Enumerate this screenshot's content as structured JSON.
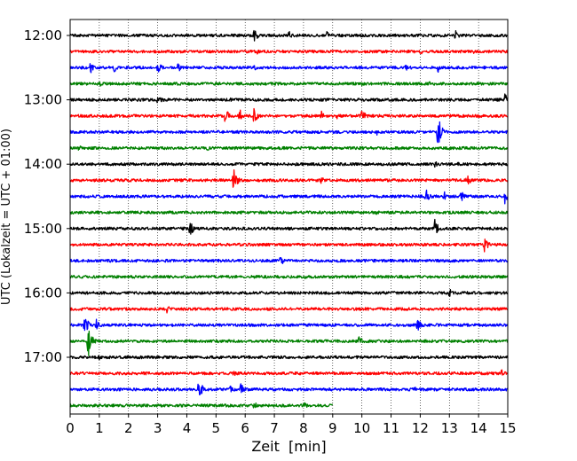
{
  "chart_data": {
    "type": "line",
    "subtype": "helicorder",
    "title": "",
    "xlabel": "Zeit  [min]",
    "ylabel": "UTC (Lokalzeit = UTC + 01:00)",
    "xlim": [
      0,
      15
    ],
    "x_ticks": [
      0,
      1,
      2,
      3,
      4,
      5,
      6,
      7,
      8,
      9,
      10,
      11,
      12,
      13,
      14,
      15
    ],
    "x_tick_labels": [
      "0",
      "1",
      "2",
      "3",
      "4",
      "5",
      "6",
      "7",
      "8",
      "9",
      "10",
      "11",
      "12",
      "13",
      "14",
      "15"
    ],
    "y_tick_labels": [
      "12:00",
      "13:00",
      "14:00",
      "15:00",
      "16:00",
      "17:00"
    ],
    "y_tick_rows": [
      0,
      4,
      8,
      12,
      16,
      20
    ],
    "grid": "vertical dotted",
    "legend": "none",
    "colors": [
      "#000000",
      "#ff0000",
      "#0000ff",
      "#008000"
    ],
    "line_minutes": 15,
    "rows": [
      {
        "start": "12:00",
        "color": "#000000",
        "end_min": 15,
        "events": [
          [
            6.3,
            9
          ],
          [
            7.5,
            5
          ],
          [
            8.8,
            5
          ],
          [
            13.2,
            7
          ]
        ]
      },
      {
        "start": "12:15",
        "color": "#ff0000",
        "end_min": 15,
        "events": [
          [
            6.4,
            4
          ],
          [
            12.0,
            4
          ],
          [
            13.8,
            3
          ]
        ]
      },
      {
        "start": "12:30",
        "color": "#0000ff",
        "end_min": 15,
        "events": [
          [
            0.7,
            7
          ],
          [
            1.5,
            6
          ],
          [
            3.0,
            8
          ],
          [
            3.7,
            6
          ],
          [
            5.0,
            4
          ],
          [
            6.3,
            4
          ],
          [
            11.5,
            5
          ],
          [
            12.6,
            6
          ]
        ]
      },
      {
        "start": "12:45",
        "color": "#008000",
        "end_min": 15,
        "events": [
          [
            1.0,
            4
          ],
          [
            10.0,
            3
          ],
          [
            12.3,
            3
          ]
        ]
      },
      {
        "start": "13:00",
        "color": "#000000",
        "end_min": 15,
        "events": [
          [
            3.0,
            8
          ],
          [
            5.5,
            3
          ],
          [
            14.9,
            8
          ]
        ]
      },
      {
        "start": "13:15",
        "color": "#ff0000",
        "end_min": 15,
        "events": [
          [
            5.3,
            12
          ],
          [
            5.8,
            9
          ],
          [
            6.3,
            11
          ],
          [
            8.6,
            7
          ],
          [
            9.1,
            6
          ],
          [
            10.0,
            10
          ]
        ]
      },
      {
        "start": "13:30",
        "color": "#0000ff",
        "end_min": 15,
        "events": [
          [
            12.6,
            20
          ],
          [
            10.5,
            4
          ]
        ]
      },
      {
        "start": "13:45",
        "color": "#008000",
        "end_min": 15,
        "events": [
          [
            0.3,
            4
          ],
          [
            4.7,
            3
          ]
        ]
      },
      {
        "start": "14:00",
        "color": "#000000",
        "end_min": 15,
        "events": [
          [
            12.5,
            4
          ],
          [
            13.3,
            4
          ]
        ]
      },
      {
        "start": "14:15",
        "color": "#ff0000",
        "end_min": 15,
        "events": [
          [
            5.6,
            14
          ],
          [
            8.6,
            6
          ],
          [
            13.6,
            8
          ]
        ]
      },
      {
        "start": "14:30",
        "color": "#0000ff",
        "end_min": 15,
        "events": [
          [
            12.2,
            10
          ],
          [
            12.8,
            7
          ],
          [
            13.4,
            7
          ],
          [
            14.9,
            10
          ]
        ]
      },
      {
        "start": "14:45",
        "color": "#008000",
        "end_min": 15,
        "events": [
          [
            1.0,
            3
          ],
          [
            10.5,
            4
          ]
        ]
      },
      {
        "start": "15:00",
        "color": "#000000",
        "end_min": 15,
        "events": [
          [
            4.1,
            11
          ],
          [
            12.5,
            11
          ]
        ]
      },
      {
        "start": "15:15",
        "color": "#ff0000",
        "end_min": 15,
        "events": [
          [
            14.2,
            10
          ]
        ]
      },
      {
        "start": "15:30",
        "color": "#0000ff",
        "end_min": 15,
        "events": [
          [
            7.2,
            7
          ],
          [
            4.7,
            3
          ]
        ]
      },
      {
        "start": "15:45",
        "color": "#008000",
        "end_min": 15,
        "events": [
          [
            8.0,
            4
          ]
        ]
      },
      {
        "start": "16:00",
        "color": "#000000",
        "end_min": 15,
        "events": [
          [
            13.0,
            6
          ]
        ]
      },
      {
        "start": "16:15",
        "color": "#ff0000",
        "end_min": 15,
        "events": [
          [
            3.3,
            6
          ]
        ]
      },
      {
        "start": "16:30",
        "color": "#0000ff",
        "end_min": 15,
        "events": [
          [
            0.5,
            12
          ],
          [
            0.9,
            7
          ],
          [
            11.9,
            9
          ]
        ]
      },
      {
        "start": "16:45",
        "color": "#008000",
        "end_min": 15,
        "events": [
          [
            0.6,
            22
          ],
          [
            2.0,
            4
          ],
          [
            9.9,
            7
          ]
        ]
      },
      {
        "start": "17:00",
        "color": "#000000",
        "end_min": 15,
        "events": [
          [
            1.0,
            3
          ]
        ]
      },
      {
        "start": "17:15",
        "color": "#ff0000",
        "end_min": 15,
        "events": [
          [
            5.6,
            4
          ],
          [
            14.8,
            6
          ]
        ]
      },
      {
        "start": "17:30",
        "color": "#0000ff",
        "end_min": 15,
        "events": [
          [
            4.4,
            14
          ],
          [
            5.8,
            11
          ],
          [
            5.5,
            6
          ],
          [
            11.8,
            4
          ]
        ]
      },
      {
        "start": "17:45",
        "color": "#008000",
        "end_min": 9,
        "events": [
          [
            6.3,
            5
          ],
          [
            8.0,
            5
          ]
        ]
      }
    ]
  }
}
